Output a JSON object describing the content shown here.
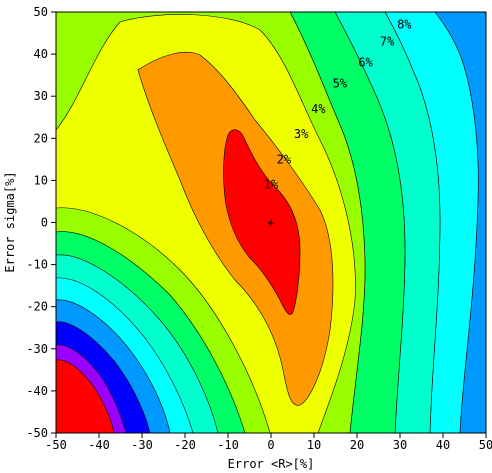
{
  "chart_data": {
    "type": "contour",
    "title": "",
    "xlabel": "Error <R>[%]",
    "ylabel": "Error sigma[%]",
    "xlim": [
      -50,
      50
    ],
    "ylim": [
      -50,
      50
    ],
    "x_ticks": [
      "-50",
      "-40",
      "-30",
      "-20",
      "-10",
      "0",
      "10",
      "20",
      "30",
      "40",
      "50"
    ],
    "y_ticks": [
      "50",
      "40",
      "30",
      "20",
      "10",
      "0",
      "-10",
      "-20",
      "-30",
      "-40",
      "-50"
    ],
    "contour_labels": [
      "1%",
      "2%",
      "3%",
      "4%",
      "5%",
      "6%",
      "7%",
      "8%"
    ],
    "contour_label_positions": [
      {
        "label": "1%",
        "x": 0,
        "y": 9
      },
      {
        "label": "2%",
        "x": 3,
        "y": 15
      },
      {
        "label": "3%",
        "x": 7,
        "y": 21
      },
      {
        "label": "4%",
        "x": 11,
        "y": 27
      },
      {
        "label": "5%",
        "x": 16,
        "y": 33
      },
      {
        "label": "6%",
        "x": 22,
        "y": 38
      },
      {
        "label": "7%",
        "x": 27,
        "y": 43
      },
      {
        "label": "8%",
        "x": 31,
        "y": 47
      }
    ],
    "minimum_marker": {
      "x": 0,
      "y": 0,
      "symbol": "+"
    },
    "grid": false,
    "colors": [
      "#ff0000",
      "#ff9900",
      "#eeff00",
      "#99ff00",
      "#00ff66",
      "#00ffcc",
      "#00ffff",
      "#0099ff",
      "#0000ff",
      "#9900ff"
    ]
  }
}
